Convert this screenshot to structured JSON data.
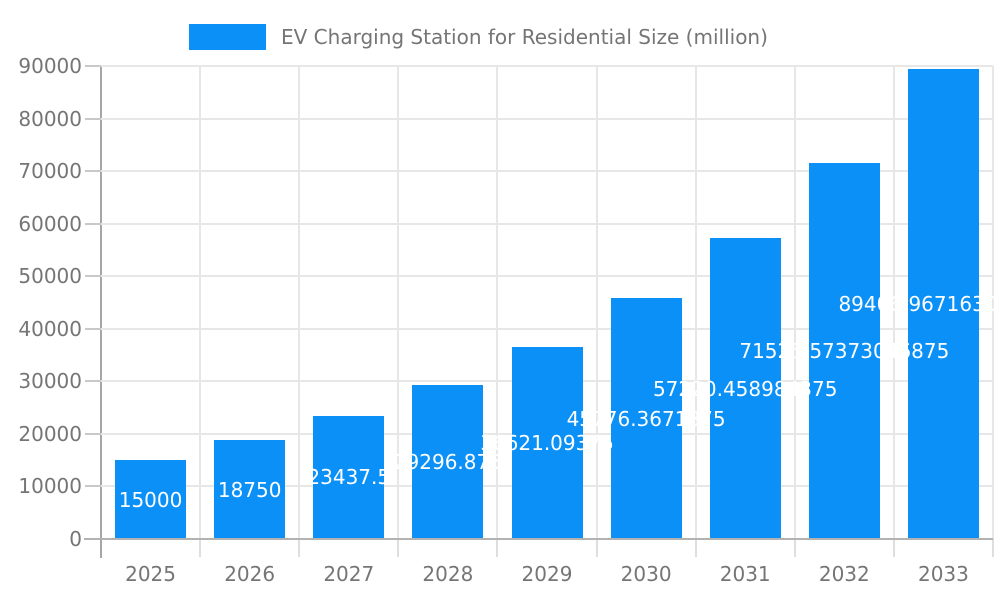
{
  "legend": {
    "label": "EV Charging Station for Residential Size (million)"
  },
  "colors": {
    "bar": "#0a90f6",
    "axis_text": "#757575",
    "grid": "#e7e7e7",
    "axis_line": "#a6a6a6",
    "baseline": "#b2b2b2",
    "y_tick": "#c9c9c9",
    "x_tick": "#dedede",
    "value_label": "#ffffff",
    "background": "#ffffff"
  },
  "chart_data": {
    "type": "bar",
    "title": "EV Charging Station for Residential Size (million)",
    "categories": [
      "2025",
      "2026",
      "2027",
      "2028",
      "2029",
      "2030",
      "2031",
      "2032",
      "2033"
    ],
    "values": [
      15000,
      18750,
      23437.5,
      29296.875,
      36621.09375,
      45776.3671875,
      57220.458984375,
      71525.57373046875,
      89406.96716308594
    ],
    "value_labels": [
      "15000",
      "18750",
      "23437.5",
      "29296.875",
      "36621.09375",
      "45776.3671875",
      "57220.458984375",
      "71525.57373046875",
      "89406.96716308594"
    ],
    "series": [
      {
        "name": "EV Charging Station for Residential Size (million)",
        "values": [
          15000,
          18750,
          23437.5,
          29296.875,
          36621.09375,
          45776.3671875,
          57220.458984375,
          71525.57373046875,
          89406.96716308594
        ]
      }
    ],
    "xlabel": "",
    "ylabel": "",
    "ylim": [
      0,
      90000
    ],
    "yticks": [
      0,
      10000,
      20000,
      30000,
      40000,
      50000,
      60000,
      70000,
      80000,
      90000
    ],
    "grid": true,
    "legend_position": "top"
  }
}
